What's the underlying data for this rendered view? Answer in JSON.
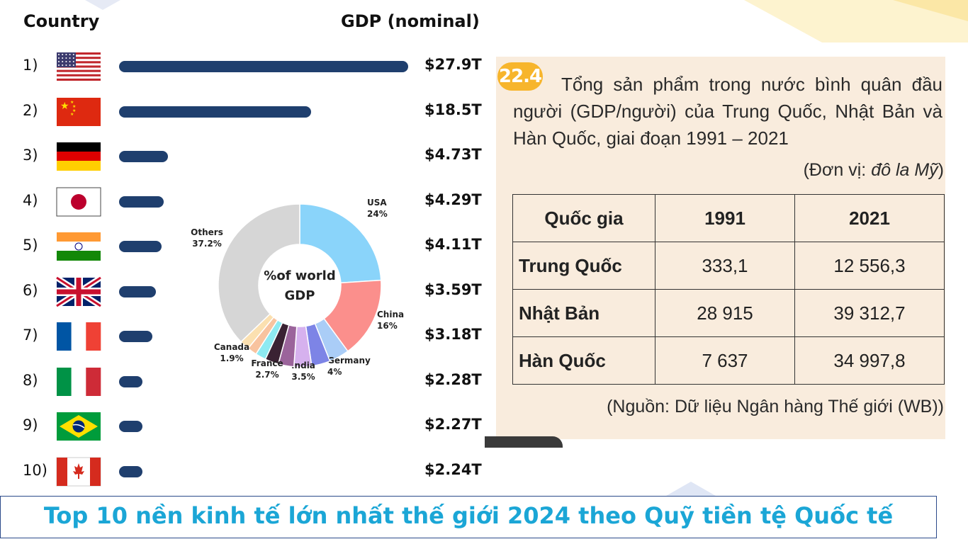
{
  "header": {
    "country": "Country",
    "gdp": "GDP (nominal)"
  },
  "colors": {
    "bar": "#1f3f6e",
    "caption": "#1ba6d6",
    "panel_bg": "#f9ecdd",
    "badge": "#f7b52c"
  },
  "chart_data": [
    {
      "type": "bar",
      "orientation": "horizontal",
      "categories": [
        "1)",
        "2)",
        "3)",
        "4)",
        "5)",
        "6)",
        "7)",
        "8)",
        "9)",
        "10)"
      ],
      "flags": [
        "usa-flag",
        "china-flag",
        "germany-flag",
        "japan-flag",
        "india-flag",
        "uk-flag",
        "france-flag",
        "italy-flag",
        "brazil-flag",
        "canada-flag"
      ],
      "values": [
        27.9,
        18.5,
        4.73,
        4.29,
        4.11,
        3.59,
        3.18,
        2.28,
        2.27,
        2.24
      ],
      "value_labels": [
        "$27.9T",
        "$18.5T",
        "$4.73T",
        "$4.29T",
        "$4.11T",
        "$3.59T",
        "$3.18T",
        "$2.28T",
        "$2.27T",
        "$2.24T"
      ],
      "xlim": [
        0,
        27.9
      ]
    },
    {
      "type": "pie",
      "donut": true,
      "center_label": [
        "%of world",
        "GDP"
      ],
      "slices": [
        {
          "label": "USA",
          "value": 24,
          "text": "24%",
          "color": "#8ad4fa"
        },
        {
          "label": "China",
          "value": 16,
          "text": "16%",
          "color": "#fb8f8c"
        },
        {
          "label": "Germany",
          "value": 4,
          "text": "4%",
          "color": "#aacdf7"
        },
        {
          "label": "",
          "value": 3.7,
          "text": "",
          "color": "#7d84e6"
        },
        {
          "label": "India",
          "value": 3.5,
          "text": "3.5%",
          "color": "#d6b1ee"
        },
        {
          "label": "",
          "value": 3.1,
          "text": "",
          "color": "#9b649b"
        },
        {
          "label": "France",
          "value": 2.7,
          "text": "2.7%",
          "color": "#3a2233"
        },
        {
          "label": "",
          "value": 2.1,
          "text": "",
          "color": "#8eeaf2"
        },
        {
          "label": "",
          "value": 1.9,
          "text": "",
          "color": "#f8c39f"
        },
        {
          "label": "Canada",
          "value": 1.9,
          "text": "1.9%",
          "color": "#fbe0b0"
        },
        {
          "label": "Others",
          "value": 37.2,
          "text": "37.2%",
          "color": "#d6d6d6"
        }
      ]
    },
    {
      "type": "table",
      "badge": "22.4",
      "title": "Tổng sản phẩm trong nước bình quân đầu người (GDP/người) của Trung Quốc, Nhật Bản và Hàn Quốc, giai đoạn 1991 – 2021",
      "unit_prefix": "(Đơn vị: ",
      "unit_value": "đô la Mỹ",
      "unit_suffix": ")",
      "columns": [
        "Quốc gia",
        "1991",
        "2021"
      ],
      "rows": [
        [
          "Trung Quốc",
          "333,1",
          "12 556,3"
        ],
        [
          "Nhật Bản",
          "28 915",
          "39 312,7"
        ],
        [
          "Hàn Quốc",
          "7 637",
          "34 997,8"
        ]
      ],
      "source": "(Nguồn: Dữ liệu Ngân hàng Thế giới (WB))"
    }
  ],
  "caption": "Top 10 nền kinh tế lớn nhất thế giới 2024 theo Quỹ tiền tệ Quốc tế"
}
